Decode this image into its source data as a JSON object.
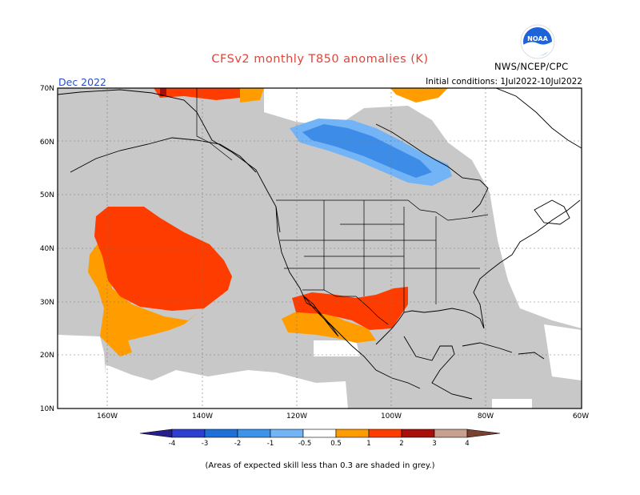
{
  "header": {
    "title": "CFSv2 monthly T850 anomalies (K)",
    "period": "Dec 2022",
    "initial_conditions": "Initial conditions: 1Jul2022-10Jul2022",
    "org": "NWS/NCEP/CPC",
    "logo_text": "NOAA"
  },
  "map": {
    "lat_labels": [
      "70N",
      "60N",
      "50N",
      "40N",
      "30N",
      "20N",
      "10N"
    ],
    "lon_labels": [
      "160W",
      "140W",
      "120W",
      "100W",
      "80W",
      "60W"
    ],
    "grey_color": "#c8c8c8"
  },
  "anomalies": [
    {
      "region": "central North Pacific",
      "category": "+1 to +2",
      "color": "#ff3c00"
    },
    {
      "region": "subtropical North Pacific",
      "category": "+0.5 to +1",
      "color": "#ff9c00"
    },
    {
      "region": "Mexico / southern US",
      "category": "+1 to +2",
      "color": "#ff3c00"
    },
    {
      "region": "Baja California",
      "category": "+0.5 to +1",
      "color": "#ff9c00"
    },
    {
      "region": "central Canada",
      "category": "-1 to -0.5",
      "color": "#73b4f6"
    },
    {
      "region": "central Canada core",
      "category": "-2 to -1",
      "color": "#3c8ce8"
    },
    {
      "region": "Arctic Alaska",
      "category": "+1 to +2",
      "color": "#ff3c00"
    }
  ],
  "legend": {
    "labels": [
      "-4",
      "-3",
      "-2",
      "-1",
      "-0.5",
      "0.5",
      "1",
      "2",
      "3",
      "4"
    ],
    "colors": [
      "#281e8c",
      "#2e3fd0",
      "#1f6fd9",
      "#3d92ea",
      "#72b4f6",
      "#ffffff",
      "#ff9c00",
      "#ff3c00",
      "#a60f0a",
      "#c8a090",
      "#7a4030"
    ]
  },
  "footnote": "(Areas of expected skill less than 0.3 are shaded in grey.)"
}
